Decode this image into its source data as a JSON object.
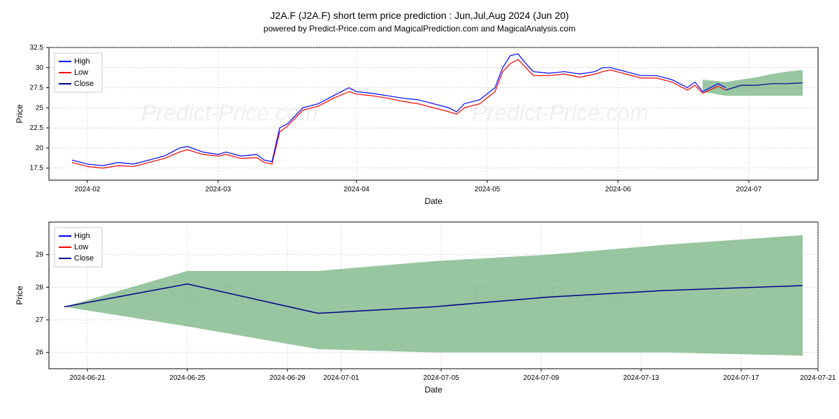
{
  "title": "J2A.F (J2A.F) short term price prediction : Jun,Jul,Aug 2024 (Jun 20)",
  "subtitle": "powered by Predict-Price.com and MagicalPrediction.com and MagicalAnalysis.com",
  "watermark": "Predict-Price.com",
  "legend": {
    "items": [
      {
        "label": "High",
        "color": "#0000ff"
      },
      {
        "label": "Low",
        "color": "#ff0000"
      },
      {
        "label": "Close",
        "color": "#00008b"
      }
    ]
  },
  "chart1": {
    "type": "line-with-band",
    "ylabel": "Price",
    "xlabel": "Date",
    "ylim": [
      16,
      32.5
    ],
    "yticks": [
      17.5,
      20.0,
      22.5,
      25.0,
      27.5,
      30.0,
      32.5
    ],
    "xticks": [
      "2024-02",
      "2024-03",
      "2024-04",
      "2024-05",
      "2024-06",
      "2024-07"
    ],
    "xtick_positions": [
      0.05,
      0.22,
      0.4,
      0.57,
      0.74,
      0.91
    ],
    "background_color": "#ffffff",
    "grid_color": "#b0b0b0",
    "band_color": "#7db88a",
    "line_width": 1.2,
    "series_high": {
      "color": "#0000ff",
      "points": [
        [
          0.03,
          18.5
        ],
        [
          0.05,
          18.0
        ],
        [
          0.07,
          17.8
        ],
        [
          0.09,
          18.2
        ],
        [
          0.11,
          18.0
        ],
        [
          0.13,
          18.5
        ],
        [
          0.15,
          19.0
        ],
        [
          0.17,
          20.0
        ],
        [
          0.18,
          20.2
        ],
        [
          0.2,
          19.5
        ],
        [
          0.22,
          19.2
        ],
        [
          0.23,
          19.5
        ],
        [
          0.25,
          19.0
        ],
        [
          0.27,
          19.2
        ],
        [
          0.28,
          18.5
        ],
        [
          0.29,
          18.3
        ],
        [
          0.3,
          22.5
        ],
        [
          0.31,
          23.0
        ],
        [
          0.33,
          25.0
        ],
        [
          0.35,
          25.5
        ],
        [
          0.37,
          26.5
        ],
        [
          0.39,
          27.5
        ],
        [
          0.4,
          27.0
        ],
        [
          0.42,
          26.8
        ],
        [
          0.44,
          26.5
        ],
        [
          0.46,
          26.2
        ],
        [
          0.48,
          26.0
        ],
        [
          0.5,
          25.5
        ],
        [
          0.52,
          25.0
        ],
        [
          0.53,
          24.5
        ],
        [
          0.54,
          25.5
        ],
        [
          0.56,
          26.0
        ],
        [
          0.58,
          27.5
        ],
        [
          0.59,
          30.0
        ],
        [
          0.6,
          31.5
        ],
        [
          0.61,
          31.7
        ],
        [
          0.62,
          30.5
        ],
        [
          0.63,
          29.5
        ],
        [
          0.65,
          29.3
        ],
        [
          0.67,
          29.5
        ],
        [
          0.69,
          29.2
        ],
        [
          0.71,
          29.5
        ],
        [
          0.72,
          30.0
        ],
        [
          0.73,
          30.0
        ],
        [
          0.75,
          29.5
        ],
        [
          0.77,
          29.0
        ],
        [
          0.79,
          29.0
        ],
        [
          0.81,
          28.5
        ],
        [
          0.83,
          27.5
        ],
        [
          0.84,
          28.2
        ],
        [
          0.85,
          27.0
        ],
        [
          0.87,
          28.0
        ],
        [
          0.88,
          27.5
        ]
      ]
    },
    "series_low": {
      "color": "#ff0000",
      "points": [
        [
          0.03,
          18.2
        ],
        [
          0.05,
          17.7
        ],
        [
          0.07,
          17.5
        ],
        [
          0.09,
          17.8
        ],
        [
          0.11,
          17.7
        ],
        [
          0.13,
          18.2
        ],
        [
          0.15,
          18.7
        ],
        [
          0.17,
          19.5
        ],
        [
          0.18,
          19.8
        ],
        [
          0.2,
          19.2
        ],
        [
          0.22,
          19.0
        ],
        [
          0.23,
          19.2
        ],
        [
          0.25,
          18.7
        ],
        [
          0.27,
          18.8
        ],
        [
          0.28,
          18.2
        ],
        [
          0.29,
          18.0
        ],
        [
          0.3,
          22.0
        ],
        [
          0.31,
          22.7
        ],
        [
          0.33,
          24.7
        ],
        [
          0.35,
          25.2
        ],
        [
          0.37,
          26.2
        ],
        [
          0.39,
          27.0
        ],
        [
          0.4,
          26.7
        ],
        [
          0.42,
          26.5
        ],
        [
          0.44,
          26.2
        ],
        [
          0.46,
          25.8
        ],
        [
          0.48,
          25.5
        ],
        [
          0.5,
          25.0
        ],
        [
          0.52,
          24.5
        ],
        [
          0.53,
          24.2
        ],
        [
          0.54,
          25.0
        ],
        [
          0.56,
          25.5
        ],
        [
          0.58,
          27.0
        ],
        [
          0.59,
          29.5
        ],
        [
          0.6,
          30.5
        ],
        [
          0.61,
          31.0
        ],
        [
          0.62,
          30.0
        ],
        [
          0.63,
          29.0
        ],
        [
          0.65,
          29.0
        ],
        [
          0.67,
          29.2
        ],
        [
          0.69,
          28.8
        ],
        [
          0.71,
          29.2
        ],
        [
          0.72,
          29.5
        ],
        [
          0.73,
          29.7
        ],
        [
          0.75,
          29.2
        ],
        [
          0.77,
          28.7
        ],
        [
          0.79,
          28.7
        ],
        [
          0.81,
          28.2
        ],
        [
          0.83,
          27.2
        ],
        [
          0.84,
          27.8
        ],
        [
          0.85,
          26.8
        ],
        [
          0.87,
          27.7
        ],
        [
          0.88,
          27.2
        ]
      ]
    },
    "series_close": {
      "color": "#00008b",
      "points": [
        [
          0.88,
          27.2
        ],
        [
          0.9,
          27.8
        ],
        [
          0.92,
          27.8
        ],
        [
          0.94,
          28.0
        ],
        [
          0.96,
          28.0
        ],
        [
          0.98,
          28.1
        ]
      ]
    },
    "prediction_band": {
      "upper": [
        [
          0.85,
          28.5
        ],
        [
          0.88,
          28.2
        ],
        [
          0.9,
          28.5
        ],
        [
          0.92,
          28.8
        ],
        [
          0.94,
          29.2
        ],
        [
          0.96,
          29.5
        ],
        [
          0.98,
          29.7
        ]
      ],
      "lower": [
        [
          0.85,
          27.0
        ],
        [
          0.88,
          26.5
        ],
        [
          0.9,
          26.5
        ],
        [
          0.92,
          26.5
        ],
        [
          0.94,
          26.5
        ],
        [
          0.96,
          26.5
        ],
        [
          0.98,
          26.5
        ]
      ]
    }
  },
  "chart2": {
    "type": "line-with-band",
    "ylabel": "Price",
    "xlabel": "Date",
    "ylim": [
      25.5,
      30
    ],
    "yticks": [
      26,
      27,
      28,
      29
    ],
    "xticks": [
      "2024-06-21",
      "2024-06-25",
      "2024-06-29",
      "2024-07-01",
      "2024-07-05",
      "2024-07-09",
      "2024-07-13",
      "2024-07-17",
      "2024-07-21"
    ],
    "xtick_positions": [
      0.05,
      0.18,
      0.31,
      0.38,
      0.51,
      0.64,
      0.77,
      0.9,
      1.0
    ],
    "background_color": "#ffffff",
    "grid_color": "#b0b0b0",
    "band_color": "#7db88a",
    "line_width": 1.5,
    "series_close": {
      "color": "#00008b",
      "points": [
        [
          0.02,
          27.4
        ],
        [
          0.18,
          28.1
        ],
        [
          0.35,
          27.2
        ],
        [
          0.5,
          27.4
        ],
        [
          0.65,
          27.7
        ],
        [
          0.8,
          27.9
        ],
        [
          0.98,
          28.05
        ]
      ]
    },
    "prediction_band": {
      "upper": [
        [
          0.02,
          27.4
        ],
        [
          0.18,
          28.5
        ],
        [
          0.35,
          28.5
        ],
        [
          0.5,
          28.8
        ],
        [
          0.65,
          29.0
        ],
        [
          0.8,
          29.3
        ],
        [
          0.98,
          29.6
        ]
      ],
      "lower": [
        [
          0.02,
          27.4
        ],
        [
          0.18,
          26.8
        ],
        [
          0.35,
          26.1
        ],
        [
          0.5,
          26.0
        ],
        [
          0.65,
          26.0
        ],
        [
          0.8,
          26.0
        ],
        [
          0.98,
          25.9
        ]
      ]
    }
  }
}
